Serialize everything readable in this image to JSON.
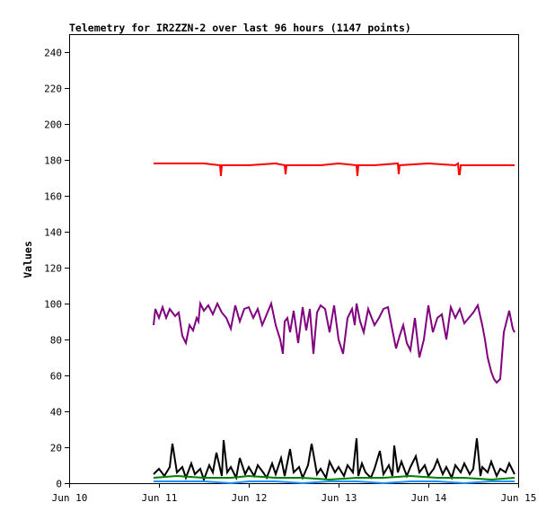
{
  "chart_data": {
    "type": "line",
    "title": "Telemetry for IR2ZZN-2 over last 96 hours (1147 points)",
    "xlabel": "",
    "ylabel": "Values",
    "ylim": [
      0,
      250
    ],
    "y_ticks": [
      0,
      20,
      40,
      60,
      80,
      100,
      120,
      140,
      160,
      180,
      200,
      220,
      240
    ],
    "x_ticks": [
      "Jun 10",
      "Jun 11",
      "Jun 12",
      "Jun 13",
      "Jun 14",
      "Jun 15"
    ],
    "xlim": [
      "Jun 10",
      "Jun 15"
    ],
    "x_unit": "days",
    "grid": false,
    "legend": "none",
    "series": [
      {
        "color": "#ff0000",
        "x": [
          10.94,
          11.5,
          11.68,
          11.69,
          11.7,
          12.0,
          12.3,
          12.4,
          12.41,
          12.42,
          12.6,
          12.8,
          13.0,
          13.2,
          13.21,
          13.22,
          13.4,
          13.66,
          13.67,
          13.68,
          14.0,
          14.3,
          14.33,
          14.34,
          14.35,
          14.36,
          14.6,
          14.96
        ],
        "values": [
          178,
          178,
          177,
          171,
          177,
          177,
          178,
          177,
          172,
          177,
          177,
          177,
          178,
          177,
          171,
          177,
          177,
          178,
          172,
          177,
          178,
          177,
          178,
          172,
          172,
          177,
          177,
          177
        ]
      },
      {
        "color": "#800080",
        "x": [
          10.94,
          10.96,
          11.0,
          11.04,
          11.08,
          11.12,
          11.18,
          11.22,
          11.26,
          11.3,
          11.34,
          11.38,
          11.42,
          11.44,
          11.46,
          11.5,
          11.55,
          11.6,
          11.65,
          11.7,
          11.75,
          11.8,
          11.85,
          11.9,
          11.95,
          12.0,
          12.05,
          12.1,
          12.15,
          12.2,
          12.25,
          12.3,
          12.35,
          12.38,
          12.4,
          12.43,
          12.46,
          12.5,
          12.55,
          12.6,
          12.64,
          12.68,
          12.72,
          12.76,
          12.8,
          12.85,
          12.9,
          12.95,
          13.0,
          13.05,
          13.1,
          13.15,
          13.18,
          13.2,
          13.24,
          13.28,
          13.33,
          13.4,
          13.45,
          13.5,
          13.55,
          13.6,
          13.64,
          13.68,
          13.72,
          13.76,
          13.8,
          13.85,
          13.9,
          13.95,
          14.0,
          14.05,
          14.1,
          14.15,
          14.2,
          14.25,
          14.3,
          14.35,
          14.4,
          14.45,
          14.5,
          14.55,
          14.6,
          14.63,
          14.66,
          14.7,
          14.73,
          14.76,
          14.8,
          14.84,
          14.88,
          14.9,
          14.94,
          14.96
        ],
        "values": [
          88,
          97,
          92,
          98,
          92,
          97,
          93,
          95,
          82,
          78,
          88,
          85,
          92,
          90,
          100,
          96,
          99,
          94,
          100,
          95,
          92,
          86,
          99,
          90,
          97,
          98,
          92,
          97,
          88,
          94,
          100,
          88,
          80,
          72,
          90,
          92,
          84,
          96,
          78,
          98,
          85,
          97,
          72,
          95,
          99,
          97,
          84,
          99,
          80,
          72,
          92,
          97,
          88,
          100,
          90,
          84,
          97,
          88,
          92,
          97,
          98,
          85,
          75,
          82,
          88,
          78,
          74,
          92,
          70,
          80,
          99,
          84,
          92,
          94,
          80,
          98,
          92,
          97,
          89,
          92,
          95,
          99,
          88,
          80,
          70,
          62,
          58,
          56,
          58,
          84,
          92,
          96,
          86,
          84
        ]
      },
      {
        "color": "#000000",
        "x": [
          10.94,
          11.0,
          11.06,
          11.12,
          11.15,
          11.2,
          11.26,
          11.3,
          11.36,
          11.4,
          11.46,
          11.5,
          11.56,
          11.6,
          11.64,
          11.7,
          11.72,
          11.76,
          11.8,
          11.86,
          11.9,
          11.96,
          12.0,
          12.06,
          12.1,
          12.16,
          12.2,
          12.26,
          12.3,
          12.36,
          12.4,
          12.46,
          12.5,
          12.56,
          12.6,
          12.66,
          12.7,
          12.76,
          12.8,
          12.86,
          12.9,
          12.96,
          13.0,
          13.06,
          13.1,
          13.16,
          13.2,
          13.22,
          13.26,
          13.3,
          13.36,
          13.4,
          13.46,
          13.5,
          13.56,
          13.6,
          13.62,
          13.66,
          13.7,
          13.76,
          13.8,
          13.86,
          13.9,
          13.96,
          14.0,
          14.06,
          14.1,
          14.16,
          14.2,
          14.26,
          14.3,
          14.36,
          14.4,
          14.46,
          14.5,
          14.54,
          14.58,
          14.6,
          14.66,
          14.7,
          14.76,
          14.8,
          14.86,
          14.9,
          14.96
        ],
        "values": [
          5,
          8,
          4,
          9,
          22,
          6,
          9,
          3,
          11,
          5,
          8,
          2,
          10,
          6,
          17,
          4,
          24,
          6,
          9,
          3,
          14,
          5,
          9,
          4,
          10,
          6,
          3,
          11,
          5,
          14,
          4,
          19,
          6,
          9,
          3,
          10,
          22,
          5,
          8,
          3,
          12,
          6,
          9,
          4,
          10,
          6,
          25,
          4,
          11,
          6,
          3,
          8,
          18,
          5,
          10,
          4,
          21,
          6,
          12,
          4,
          9,
          15,
          6,
          10,
          4,
          8,
          13,
          5,
          9,
          3,
          10,
          6,
          11,
          5,
          8,
          25,
          4,
          9,
          6,
          12,
          4,
          8,
          6,
          11,
          5
        ]
      },
      {
        "color": "#008000",
        "x": [
          10.94,
          11.2,
          11.5,
          11.8,
          12.0,
          12.3,
          12.6,
          12.9,
          13.2,
          13.5,
          13.8,
          14.1,
          14.4,
          14.7,
          14.96
        ],
        "values": [
          3,
          4,
          3,
          3,
          4,
          3,
          3,
          2,
          3,
          3,
          4,
          3,
          3,
          2,
          3
        ]
      },
      {
        "color": "#1e90ff",
        "x": [
          10.94,
          11.2,
          11.5,
          11.8,
          12.0,
          12.3,
          12.6,
          12.9,
          13.2,
          13.5,
          13.8,
          14.1,
          14.4,
          14.7,
          14.96
        ],
        "values": [
          1,
          1,
          1,
          0,
          1,
          1,
          0,
          1,
          1,
          0,
          1,
          1,
          0,
          1,
          1
        ]
      }
    ]
  }
}
